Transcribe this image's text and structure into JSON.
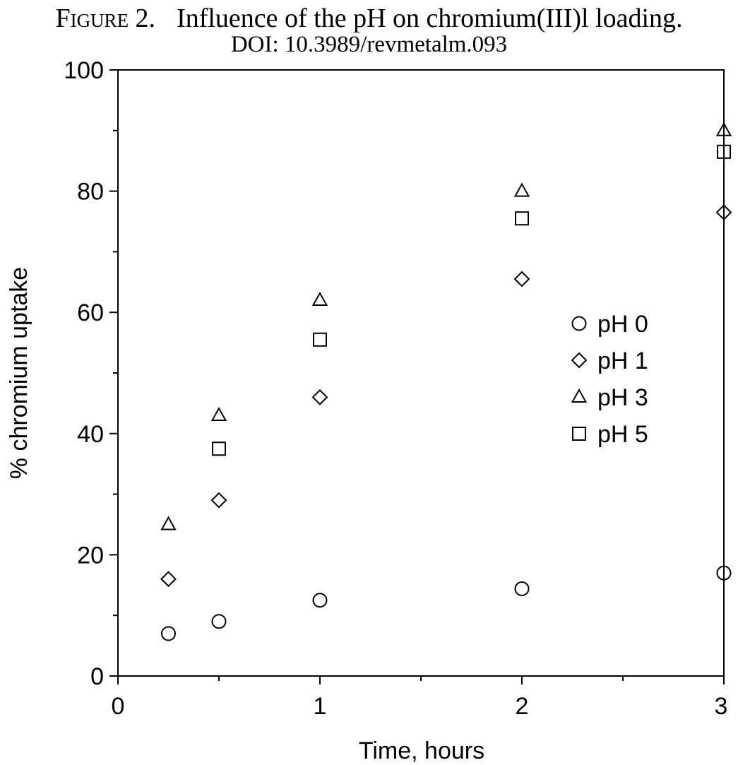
{
  "caption": {
    "label": "Figure 2.",
    "title": "Influence of the pH on chromium(III)l loading.",
    "doi": "DOI: 10.3989/revmetalm.093"
  },
  "chart_data": {
    "type": "scatter",
    "xlabel": "Time, hours",
    "ylabel": "% chromium uptake",
    "xlim": [
      0,
      3
    ],
    "ylim": [
      0,
      100
    ],
    "x_ticks": [
      0,
      1,
      2,
      3
    ],
    "x_minor_ticks": [
      0.5,
      1.5,
      2.5
    ],
    "y_ticks": [
      0,
      20,
      40,
      60,
      80,
      100
    ],
    "y_minor_ticks": [
      10,
      30,
      50,
      70,
      90
    ],
    "grid": false,
    "legend_position": "center-right",
    "series": [
      {
        "name": "pH 0",
        "marker": "circle",
        "x": [
          0.25,
          0.5,
          1,
          2,
          3
        ],
        "y": [
          7,
          9,
          12.5,
          14.4,
          17
        ]
      },
      {
        "name": "pH 1",
        "marker": "diamond",
        "x": [
          0.25,
          0.5,
          1,
          2,
          3
        ],
        "y": [
          16,
          29,
          46,
          65.5,
          76.5
        ]
      },
      {
        "name": "pH 3",
        "marker": "triangle",
        "x": [
          0.25,
          0.5,
          1,
          2,
          3
        ],
        "y": [
          25,
          43,
          62,
          80,
          90
        ]
      },
      {
        "name": "pH 5",
        "marker": "square",
        "x": [
          0.5,
          1,
          2,
          3
        ],
        "y": [
          37.5,
          55.5,
          75.5,
          86.5
        ]
      }
    ]
  }
}
